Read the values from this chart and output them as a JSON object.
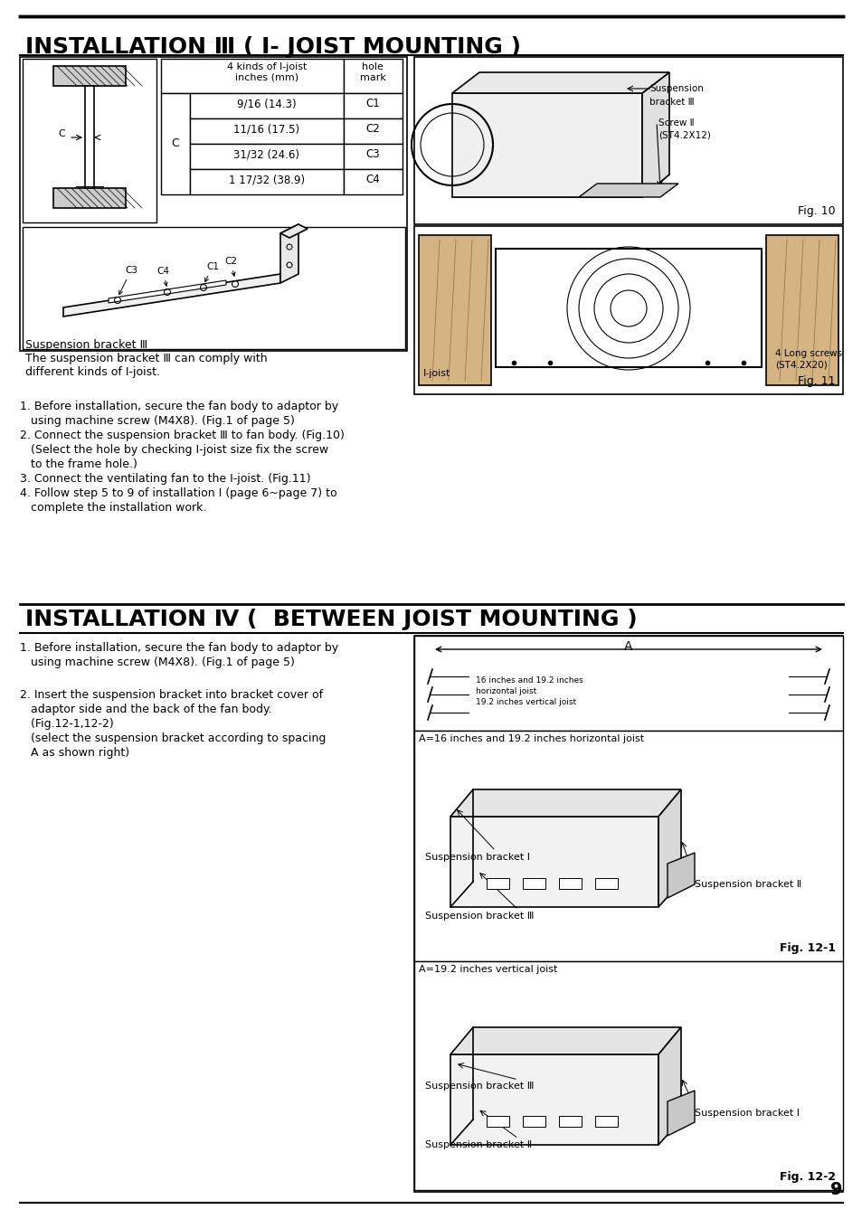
{
  "bg_color": "#ffffff",
  "page_number": "9",
  "section1_title": "INSTALLATION Ⅲ ( I- JOIST MOUNTING )",
  "section2_title": "INSTALLATION Ⅳ (  BETWEEN JOIST MOUNTING )",
  "table_rows": [
    [
      "9/16 (14.3)",
      "C1"
    ],
    [
      "11/16 (17.5)",
      "C2"
    ],
    [
      "31/32 (24.6)",
      "C3"
    ],
    [
      "1 17/32 (38.9)",
      "C4"
    ]
  ],
  "bracket_caption_line1": "Suspension bracket Ⅲ",
  "bracket_caption_line2": "The suspension bracket Ⅲ can comply with",
  "bracket_caption_line3": "different kinds of I-joist.",
  "fig10_label": "Fig. 10",
  "fig10_cap1": "Suspension",
  "fig10_cap2": "bracket Ⅲ",
  "fig10_cap3": "Screw Ⅱ",
  "fig10_cap4": "(ST4.2X12)",
  "fig11_label": "Fig. 11",
  "fig11_cap1": "I-joist",
  "fig11_cap2": "4 Long screws",
  "fig11_cap3": "(ST4.2X20)",
  "steps1": [
    "1. Before installation, secure the fan body to adaptor by",
    "   using machine screw (M4X8). (Fig.1 of page 5)",
    "2. Connect the suspension bracket Ⅲ to fan body. (Fig.10)",
    "   (Select the hole by checking I-joist size fix the screw",
    "   to the frame hole.)",
    "3. Connect the ventilating fan to the I-joist. (Fig.11)",
    "4. Follow step 5 to 9 of installation I (page 6~page 7) to",
    "   complete the installation work."
  ],
  "steps2_1a": "1. Before installation, secure the fan body to adaptor by",
  "steps2_1b": "   using machine screw (M4X8). (Fig.1 of page 5)",
  "steps2_2a": "2. Insert the suspension bracket into bracket cover of",
  "steps2_2b": "   adaptor side and the back of the fan body.",
  "steps2_2c": "   (Fig.12-1,12-2)",
  "steps2_2d": "   (select the suspension bracket according to spacing",
  "steps2_2e": "   A as shown right)",
  "fig121_label": "Fig. 12-1",
  "fig121_A": "A",
  "fig121_txt1": "16 inches and 19.2 inches",
  "fig121_txt2": "horizontal joist",
  "fig121_txt3": "19.2 inches vertical joist",
  "fig121_head": "A=16 inches and 19.2 inches horizontal joist",
  "fig121_sb1": "Suspension bracket I",
  "fig121_sb2": "Suspension bracket Ⅱ",
  "fig121_sb3": "Suspension bracket Ⅲ",
  "fig122_label": "Fig. 12-2",
  "fig122_head": "A=19.2 inches vertical joist",
  "fig122_sb1": "Suspension bracket Ⅲ",
  "fig122_sb2": "Suspension bracket Ⅱ",
  "fig122_sb3": "Suspension bracket I"
}
